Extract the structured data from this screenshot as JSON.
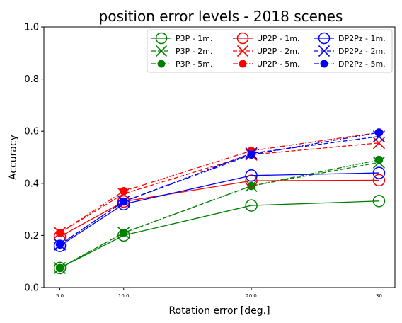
{
  "chart_data": {
    "type": "line",
    "title": "position error levels - 2018 scenes",
    "xlabel": "Rotation error [deg.]",
    "ylabel": "Accuracy",
    "x": [
      5.0,
      10.0,
      20.0,
      30
    ],
    "x_tick_labels": [
      "5.0",
      "10.0",
      "20.0",
      "30"
    ],
    "ylim": [
      0.0,
      1.0
    ],
    "y_ticks": [
      "0.0",
      "0.2",
      "0.4",
      "0.6",
      "0.8",
      "1.0"
    ],
    "grid": false,
    "legend_position": "top-right",
    "legend_columns": 3,
    "series": [
      {
        "name": "P3P - 1m.",
        "color": "#008000",
        "marker": "circle-open",
        "line": "solid",
        "values": [
          0.075,
          0.2,
          0.315,
          0.332
        ]
      },
      {
        "name": "P3P - 2m.",
        "color": "#008000",
        "marker": "x",
        "line": "dashed",
        "values": [
          0.075,
          0.21,
          0.39,
          0.48
        ]
      },
      {
        "name": "P3P - 5m.",
        "color": "#008000",
        "marker": "circle-filled",
        "line": "dashdot",
        "values": [
          0.075,
          0.21,
          0.39,
          0.49
        ]
      },
      {
        "name": "UP2P - 1m.",
        "color": "#ff0000",
        "marker": "circle-open",
        "line": "solid",
        "values": [
          0.195,
          0.33,
          0.41,
          0.412
        ]
      },
      {
        "name": "UP2P - 2m.",
        "color": "#ff0000",
        "marker": "x",
        "line": "dashed",
        "values": [
          0.21,
          0.36,
          0.51,
          0.555
        ]
      },
      {
        "name": "UP2P - 5m.",
        "color": "#ff0000",
        "marker": "circle-filled",
        "line": "dashdot",
        "values": [
          0.21,
          0.37,
          0.525,
          0.595
        ]
      },
      {
        "name": "DP2Pz - 1m.",
        "color": "#0000ff",
        "marker": "circle-open",
        "line": "solid",
        "values": [
          0.16,
          0.32,
          0.43,
          0.44
        ]
      },
      {
        "name": "DP2Pz - 2m.",
        "color": "#0000ff",
        "marker": "x",
        "line": "dashed",
        "values": [
          0.165,
          0.33,
          0.515,
          0.58
        ]
      },
      {
        "name": "DP2Pz - 5m.",
        "color": "#0000ff",
        "marker": "circle-filled",
        "line": "dashdot",
        "values": [
          0.165,
          0.33,
          0.51,
          0.595
        ]
      }
    ]
  }
}
